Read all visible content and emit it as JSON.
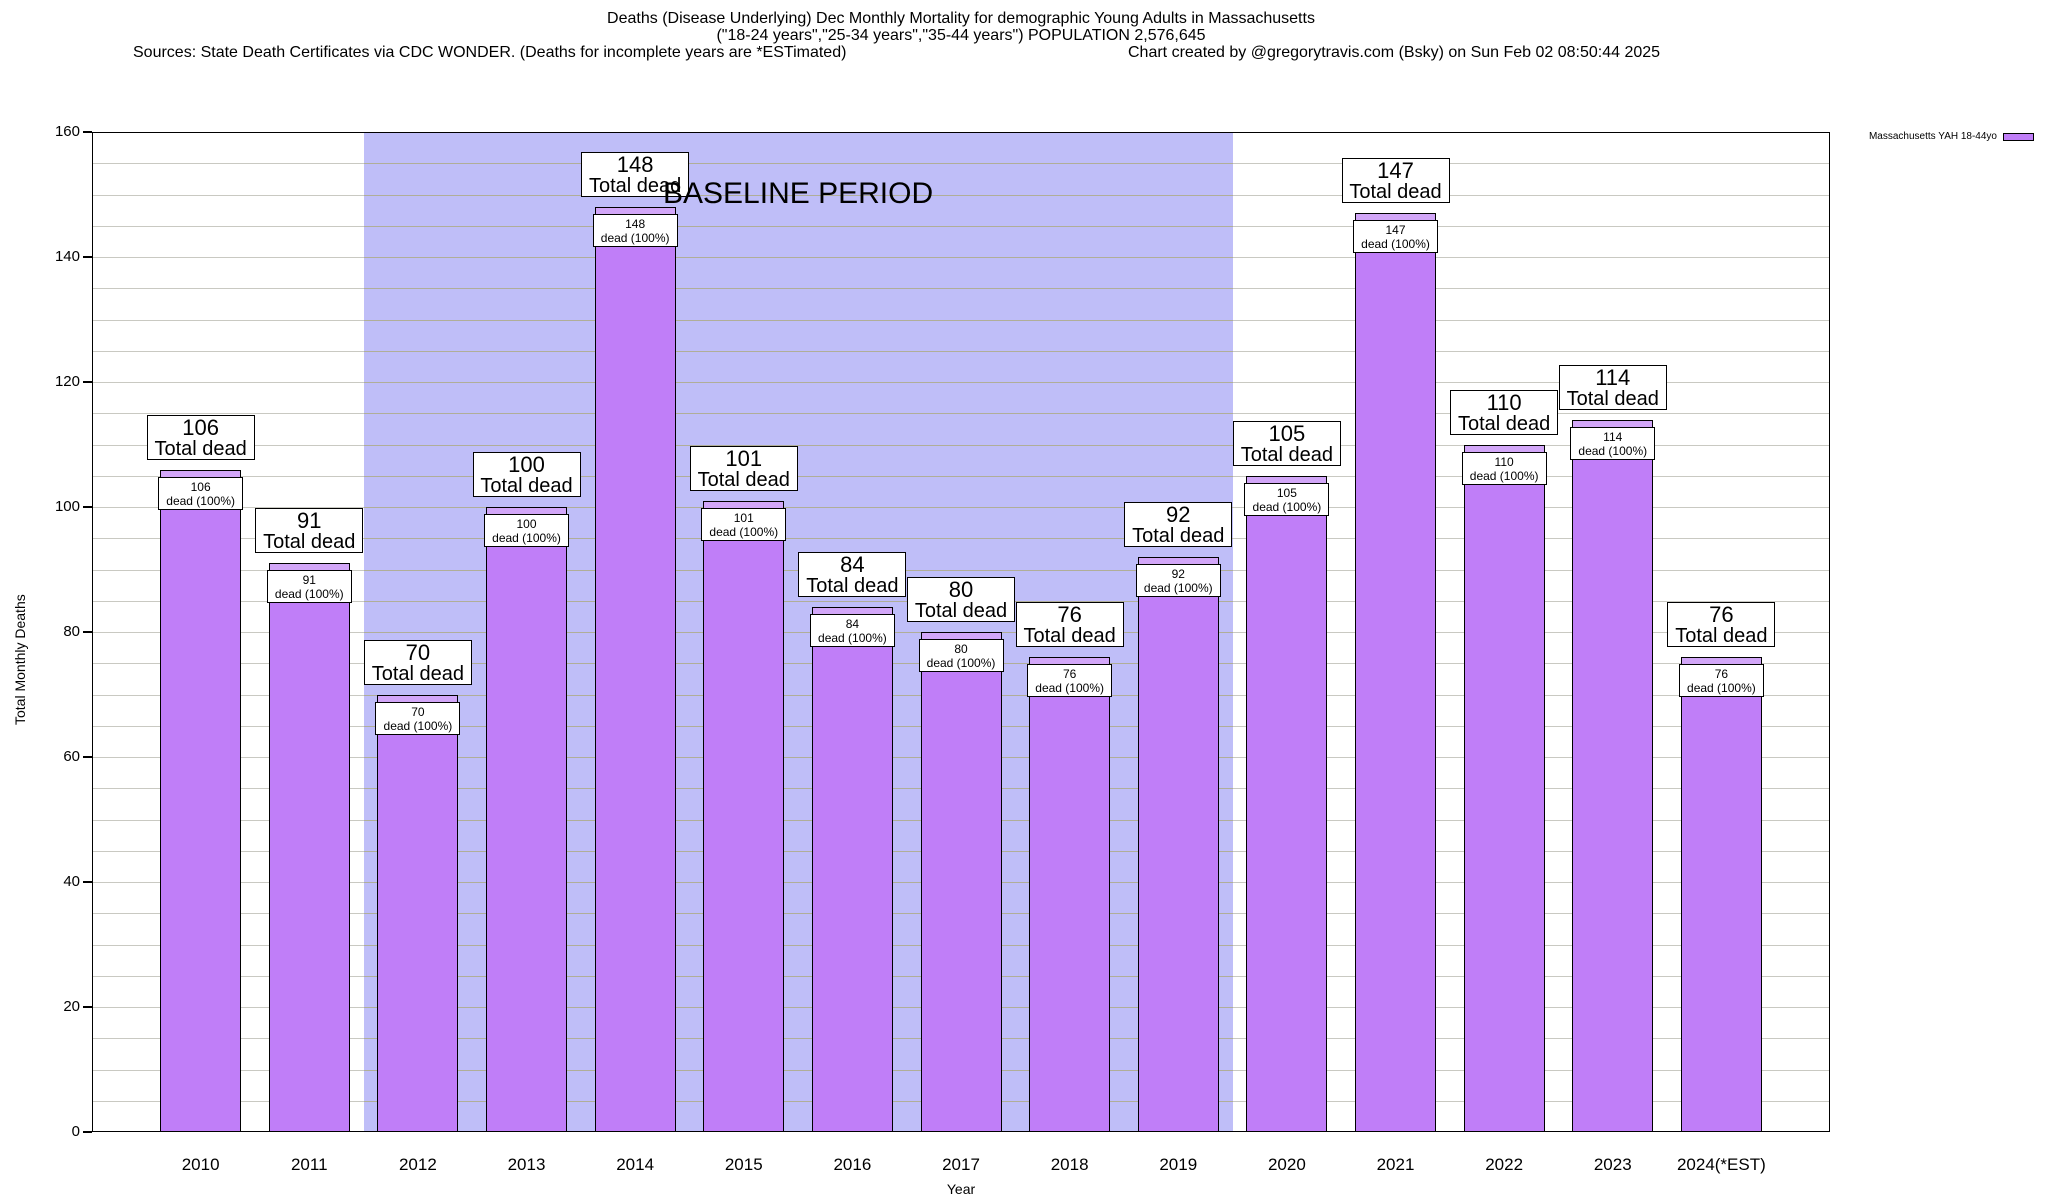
{
  "header": {
    "title_line1": "Deaths (Disease Underlying) Dec Monthly Mortality for demographic Young Adults in Massachusetts",
    "title_line2": "(\"18-24 years\",\"25-34 years\",\"35-44 years\") POPULATION 2,576,645",
    "sources_line": "Sources: State Death Certificates via CDC WONDER. (Deaths for incomplete years are *ESTimated)",
    "credit_line": "Chart created by @gregorytravis.com (Bsky) on Sun Feb 02 08:50:44 2025"
  },
  "legend": {
    "label": "Massachusetts YAH 18-44yo",
    "swatch_color": "#c07ef8"
  },
  "axes": {
    "y_label": "Total Monthly Deaths",
    "x_label": "Year"
  },
  "chart_data": {
    "type": "bar",
    "title": "Deaths (Disease Underlying) Dec Monthly Mortality for demographic Young Adults in Massachusetts",
    "categories": [
      "2010",
      "2011",
      "2012",
      "2013",
      "2014",
      "2015",
      "2016",
      "2017",
      "2018",
      "2019",
      "2020",
      "2021",
      "2022",
      "2023",
      "2024(*EST)"
    ],
    "values": [
      106,
      91,
      70,
      100,
      148,
      101,
      84,
      80,
      76,
      92,
      105,
      147,
      110,
      114,
      76
    ],
    "series_name": "Massachusetts YAH 18-44yo",
    "xlabel": "Year",
    "ylabel": "Total Monthly Deaths",
    "ylim": [
      0,
      160
    ],
    "y_major_step": 20,
    "y_minor_step": 5,
    "grid": true,
    "legend_position": "top-right",
    "bar_label_big_suffix": "Total dead",
    "bar_label_small_suffix": "dead (100%)",
    "baseline_region": {
      "label": "BASELINE PERIOD",
      "from_category": "2012",
      "to_category": "2019"
    },
    "colors": {
      "bar": "#c07ef8",
      "bar_cap": "#d2a6f8",
      "baseline_bg": "#bfbef8",
      "gridline_over_white": "#c9c9c2",
      "gridline_over_baseline": "#b0ae98"
    }
  }
}
